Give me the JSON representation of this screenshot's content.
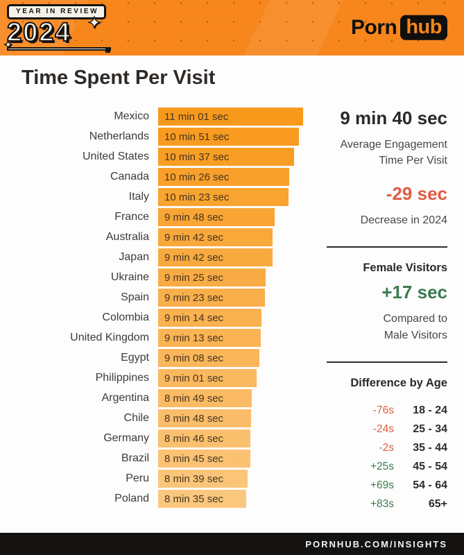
{
  "header": {
    "year_badge": "YEAR IN REVIEW",
    "year": "2024",
    "logo": {
      "porn": "Porn",
      "hub": "hub"
    }
  },
  "page_title": "Time Spent Per Visit",
  "chart_data": {
    "type": "bar",
    "orientation": "horizontal",
    "title": "Time Spent Per Visit",
    "categories": [
      "Mexico",
      "Netherlands",
      "United States",
      "Canada",
      "Italy",
      "France",
      "Australia",
      "Japan",
      "Ukraine",
      "Spain",
      "Colombia",
      "United Kingdom",
      "Egypt",
      "Philippines",
      "Argentina",
      "Chile",
      "Germany",
      "Brazil",
      "Peru",
      "Poland"
    ],
    "labels": [
      "11 min 01 sec",
      "10 min 51 sec",
      "10 min 37 sec",
      "10 min 26 sec",
      "10 min 23 sec",
      "9 min 48 sec",
      "9 min 42 sec",
      "9 min 42 sec",
      "9 min 25 sec",
      "9 min 23 sec",
      "9 min 14 sec",
      "9 min 13 sec",
      "9 min 08 sec",
      "9 min 01 sec",
      "8 min 49 sec",
      "8 min 48 sec",
      "8 min 46 sec",
      "8 min 45 sec",
      "8 min 39 sec",
      "8 min 35 sec"
    ],
    "values_seconds": [
      661,
      651,
      637,
      626,
      623,
      588,
      582,
      582,
      565,
      563,
      554,
      553,
      548,
      541,
      529,
      528,
      526,
      525,
      519,
      515
    ],
    "xlim_seconds": [
      289,
      661
    ],
    "bar_color_start": "#f8991b",
    "bar_color_end": "#fbc77e"
  },
  "stats": {
    "avg_time": "9 min 40 sec",
    "avg_caption": "Average Engagement\nTime Per Visit",
    "change_value": "-29 sec",
    "change_caption": "Decrease in 2024",
    "female_heading": "Female Visitors",
    "female_value": "+17 sec",
    "female_caption": "Compared to\nMale Visitors"
  },
  "age": {
    "heading": "Difference by Age",
    "rows": [
      {
        "value": "-76s",
        "range": "18 - 24",
        "trend": "negative"
      },
      {
        "value": "-24s",
        "range": "25 - 34",
        "trend": "negative"
      },
      {
        "value": "-2s",
        "range": "35 - 44",
        "trend": "negative"
      },
      {
        "value": "+25s",
        "range": "45 - 54",
        "trend": "positive"
      },
      {
        "value": "+69s",
        "range": "54 - 64",
        "trend": "positive"
      },
      {
        "value": "+83s",
        "range": "65+",
        "trend": "positive"
      }
    ]
  },
  "footer": {
    "url_text": "PORNHUB.COM/INSIGHTS"
  },
  "colors": {
    "brand_orange": "#f7861d",
    "negative_red": "#e15b43",
    "positive_green": "#3b7b4e",
    "bar_gradient_start": "#f8991b",
    "bar_gradient_end": "#fbc77e",
    "footer_black": "#141312"
  }
}
